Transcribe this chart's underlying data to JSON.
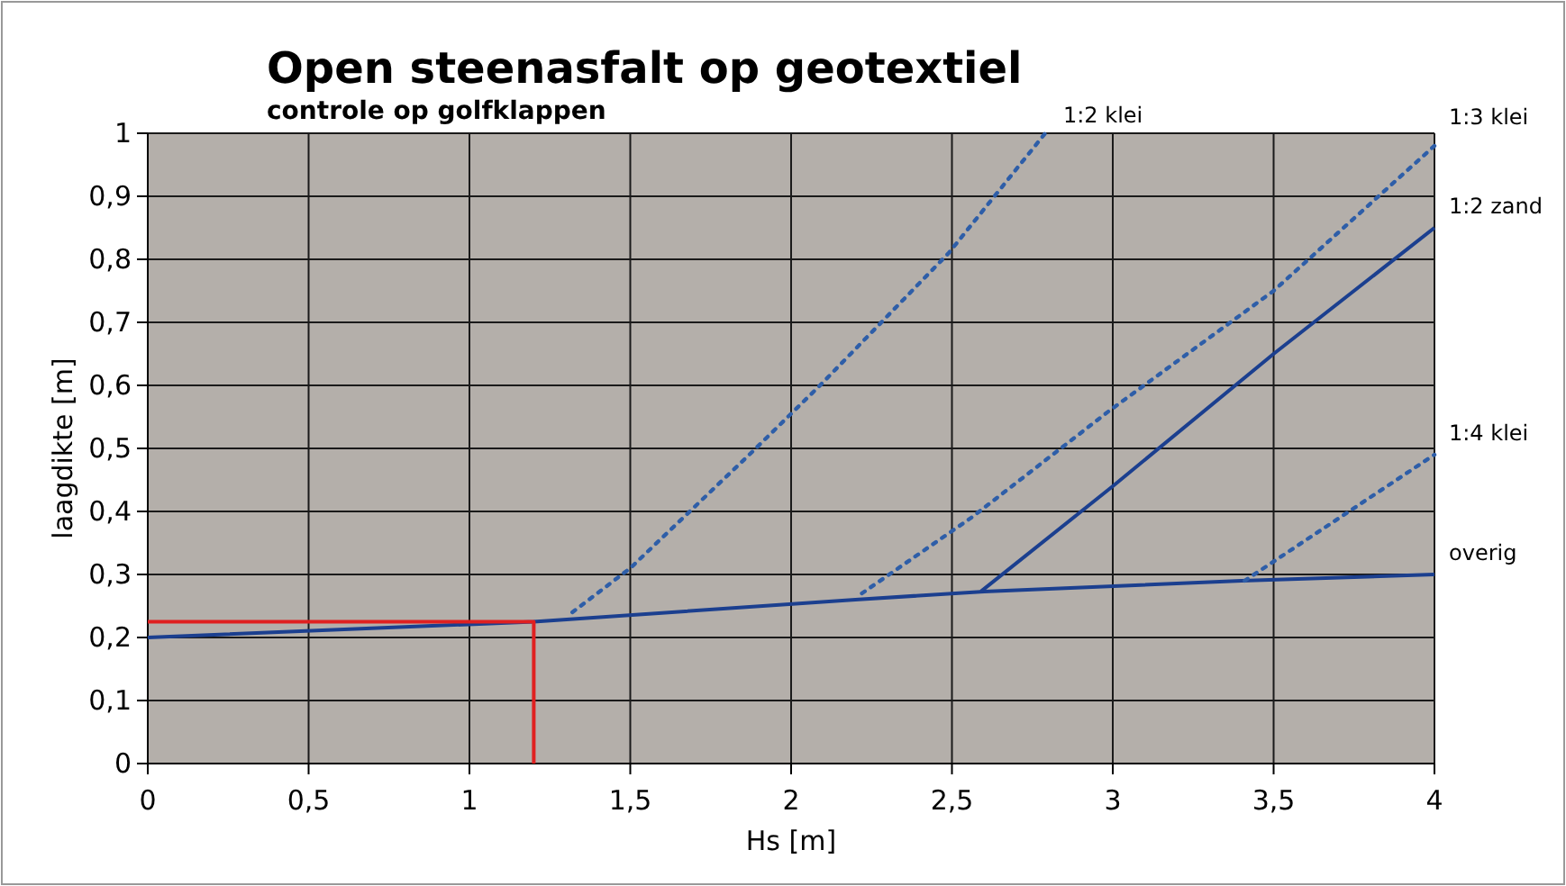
{
  "chart_data": {
    "type": "line",
    "title": "Open steenasfalt op geotextiel",
    "subtitle": "controle op golfklappen",
    "xlabel": "Hs [m]",
    "ylabel": "laagdikte [m]",
    "xlim": [
      0,
      4
    ],
    "ylim": [
      0,
      1
    ],
    "xticks": [
      0,
      {
        "value": 0.5,
        "label": "0,5"
      },
      1,
      {
        "value": 1.5,
        "label": "1,5"
      },
      2,
      {
        "value": 2.5,
        "label": "2,5"
      },
      3,
      {
        "value": 3.5,
        "label": "3,5"
      },
      4
    ],
    "yticks": [
      0,
      {
        "value": 0.1,
        "label": "0,1"
      },
      {
        "value": 0.2,
        "label": "0,2"
      },
      {
        "value": 0.3,
        "label": "0,3"
      },
      {
        "value": 0.4,
        "label": "0,4"
      },
      {
        "value": 0.5,
        "label": "0,5"
      },
      {
        "value": 0.6,
        "label": "0,6"
      },
      {
        "value": 0.7,
        "label": "0,7"
      },
      {
        "value": 0.8,
        "label": "0,8"
      },
      {
        "value": 0.9,
        "label": "0,9"
      },
      1
    ],
    "grid": true,
    "marker": "none",
    "series": [
      {
        "name": "overig",
        "color": "#1b3f8f",
        "line_style": "solid",
        "x": [
          0,
          1.2,
          2.2,
          2.6,
          3.4,
          4
        ],
        "values": [
          0.2,
          0.225,
          0.26,
          0.273,
          0.29,
          0.3
        ]
      },
      {
        "name": "1:2 klei",
        "color": "#2e5ea8",
        "line_style": "dotted",
        "x": [
          1.32,
          1.5,
          1.87,
          2.09,
          2.49,
          2.79
        ],
        "values": [
          0.24,
          0.31,
          0.49,
          0.6,
          0.81,
          1.0
        ]
      },
      {
        "name": "1:3 klei",
        "color": "#2e5ea8",
        "line_style": "dotted",
        "x": [
          2.22,
          2.56,
          2.99,
          3.5,
          4
        ],
        "values": [
          0.27,
          0.39,
          0.56,
          0.75,
          0.98
        ]
      },
      {
        "name": "1:2 zand",
        "color": "#1b3f8f",
        "line_style": "solid",
        "x": [
          2.59,
          3,
          3.5,
          4
        ],
        "values": [
          0.273,
          0.44,
          0.65,
          0.85
        ]
      },
      {
        "name": "1:4 klei",
        "color": "#2e5ea8",
        "line_style": "dotted",
        "x": [
          3.41,
          4
        ],
        "values": [
          0.29,
          0.49
        ]
      },
      {
        "color": "#e02020",
        "line_style": "solid",
        "x": [
          0,
          1.2,
          1.2
        ],
        "values": [
          0.225,
          0.225,
          0
        ]
      }
    ]
  }
}
